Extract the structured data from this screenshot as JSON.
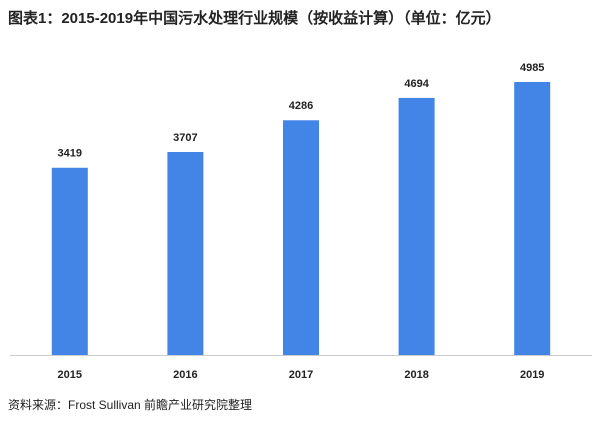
{
  "chart_data": {
    "type": "bar",
    "title": "图表1：2015-2019年中国污水处理行业规模（按收益计算）（单位：亿元）",
    "categories": [
      "2015",
      "2016",
      "2017",
      "2018",
      "2019"
    ],
    "values": [
      3419,
      3707,
      4286,
      4694,
      4985
    ],
    "color": "#4285e6",
    "source": "资料来源：Frost Sullivan 前瞻产业研究院整理"
  }
}
